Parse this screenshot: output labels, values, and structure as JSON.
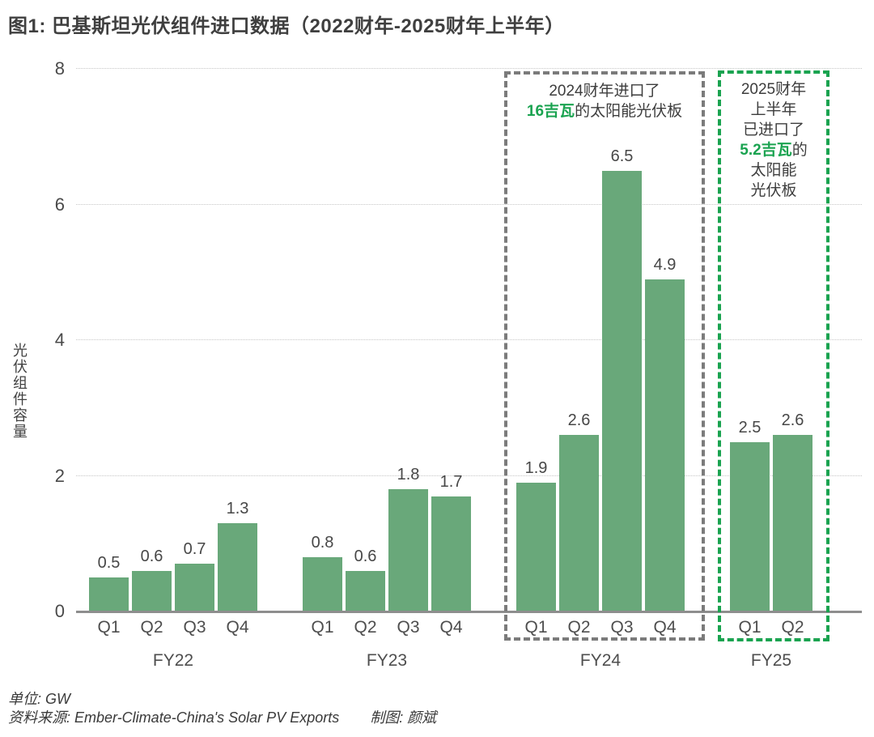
{
  "title": "图1: 巴基斯坦光伏组件进口数据（2022财年-2025财年上半年）",
  "chart_data": {
    "type": "bar",
    "title": "图1: 巴基斯坦光伏组件进口数据（2022财年-2025财年上半年）",
    "xlabel": "",
    "ylabel": "光伏组件容量",
    "unit": "GW",
    "ylim": [
      0,
      8
    ],
    "yticks": [
      0,
      2,
      4,
      6,
      8
    ],
    "grid": true,
    "bar_color": "#69A87A",
    "groups": [
      {
        "label": "FY22",
        "categories": [
          "Q1",
          "Q2",
          "Q3",
          "Q4"
        ],
        "values": [
          0.5,
          0.6,
          0.7,
          1.3
        ]
      },
      {
        "label": "FY23",
        "categories": [
          "Q1",
          "Q2",
          "Q3",
          "Q4"
        ],
        "values": [
          0.8,
          0.6,
          1.8,
          1.7
        ]
      },
      {
        "label": "FY24",
        "categories": [
          "Q1",
          "Q2",
          "Q3",
          "Q4"
        ],
        "values": [
          1.9,
          2.6,
          6.5,
          4.9
        ],
        "highlight": "dashed-gray-box"
      },
      {
        "label": "FY25",
        "categories": [
          "Q1",
          "Q2"
        ],
        "values": [
          2.5,
          2.6
        ],
        "highlight": "dashed-green-box"
      }
    ],
    "annotations": [
      {
        "group": "FY24",
        "lines": [
          [
            {
              "text": "2024财年进口了",
              "accent": false
            }
          ],
          [
            {
              "text": "16吉瓦",
              "accent": true
            },
            {
              "text": "的太阳能光伏板",
              "accent": false
            }
          ]
        ]
      },
      {
        "group": "FY25",
        "lines": [
          [
            {
              "text": "2025财年",
              "accent": false
            }
          ],
          [
            {
              "text": "上半年",
              "accent": false
            }
          ],
          [
            {
              "text": "已进口了",
              "accent": false
            }
          ],
          [
            {
              "text": "5.2吉瓦",
              "accent": true
            },
            {
              "text": "的",
              "accent": false
            }
          ],
          [
            {
              "text": "太阳能",
              "accent": false
            }
          ],
          [
            {
              "text": "光伏板",
              "accent": false
            }
          ]
        ]
      }
    ],
    "legend": null
  },
  "footer": {
    "unit": "单位: GW",
    "source": "资料来源: Ember-Climate-China's Solar PV Exports",
    "credit": "制图: 颜斌"
  },
  "colors": {
    "bar_green": "#69A87A",
    "accent_green": "#1AA350",
    "box_gray": "#7B7B7B",
    "title_text": "#3F3F3F",
    "body_text": "#4A4A4A",
    "gridline": "#C6C6C6",
    "axis_line": "#8E8E8E"
  }
}
